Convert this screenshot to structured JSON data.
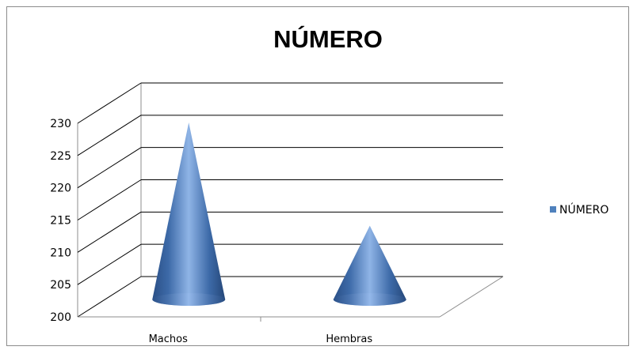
{
  "chart_data": {
    "type": "bar",
    "subtype": "3d-cone",
    "title": "NÚMERO",
    "categories": [
      "Machos",
      "Hembras"
    ],
    "series": [
      {
        "name": "NÚMERO",
        "values": [
          227,
          211
        ],
        "color": "#4f81bd"
      }
    ],
    "ylim": [
      200,
      230
    ],
    "yticks": [
      200,
      205,
      210,
      215,
      220,
      225,
      230
    ],
    "grid": true,
    "legend_position": "right"
  }
}
